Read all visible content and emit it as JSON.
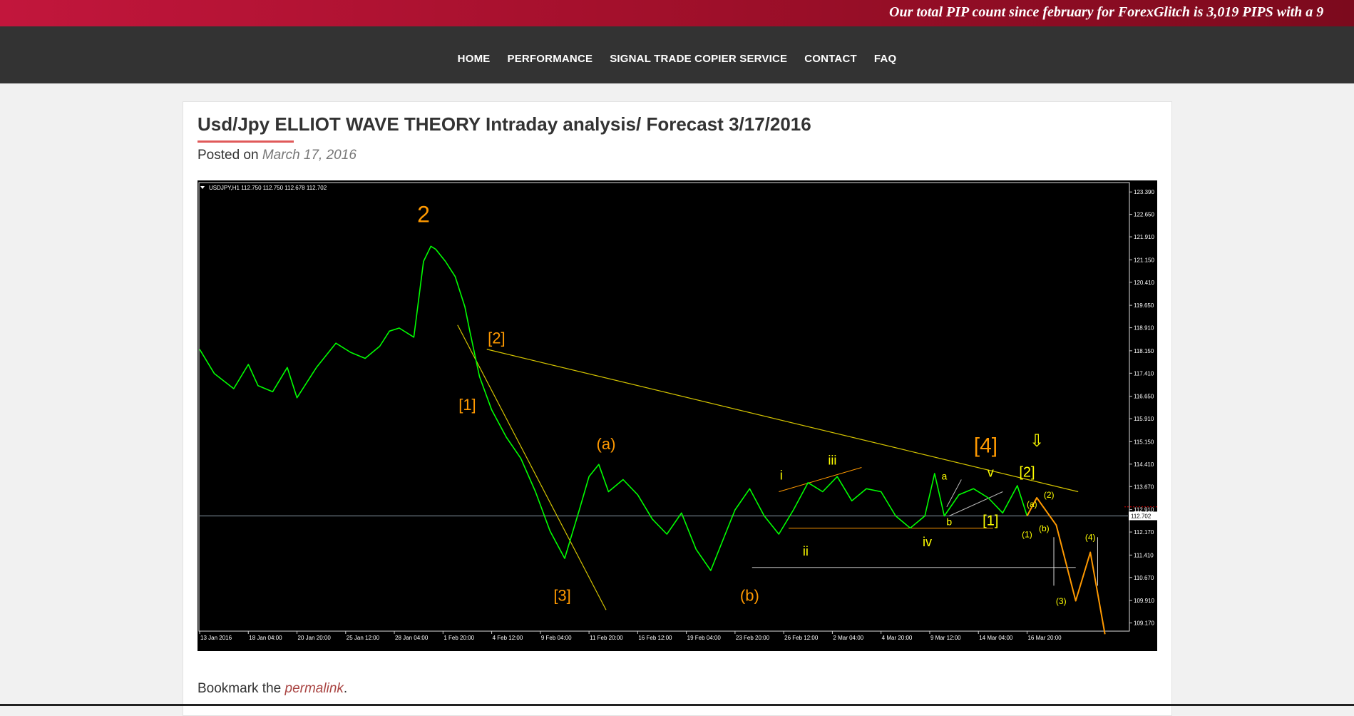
{
  "ticker": {
    "text": "Our total PIP count since february for ForexGlitch is 3,019 PIPS with a 9"
  },
  "nav": {
    "items": [
      "HOME",
      "PERFORMANCE",
      "SIGNAL TRADE COPIER SERVICE",
      "CONTACT",
      "FAQ"
    ]
  },
  "post": {
    "title": "Usd/Jpy ELLIOT WAVE THEORY Intraday analysis/ Forecast 3/17/2016",
    "posted_on": "Posted on",
    "date": "March 17, 2016",
    "bookmark_prefix": "Bookmark the",
    "bookmark_link": "permalink",
    "bookmark_suffix": "."
  },
  "colors": {
    "accent": "#c2163c",
    "nav_bg": "#333333",
    "link": "#a94442",
    "price": "#00ff00",
    "trendline": "#d4c400",
    "projection": "#ff9900",
    "wave_label": "#ff9900",
    "wave_label_minor": "#ffff00"
  },
  "chart_data": {
    "type": "line",
    "header": "USDJPY,H1  112.750 112.750 112.678 112.702",
    "last_price": "112.702",
    "ylim": [
      108.9,
      123.7
    ],
    "yticks": [
      "123.390",
      "122.650",
      "121.910",
      "121.150",
      "120.410",
      "119.650",
      "118.910",
      "118.150",
      "117.410",
      "116.650",
      "115.910",
      "115.150",
      "114.410",
      "113.670",
      "112.910",
      "112.170",
      "111.410",
      "110.670",
      "109.910",
      "109.170"
    ],
    "xticks": [
      "13 Jan 2016",
      "18 Jan 04:00",
      "20 Jan 20:00",
      "25 Jan 12:00",
      "28 Jan 04:00",
      "1 Feb 20:00",
      "4 Feb 12:00",
      "9 Feb 04:00",
      "11 Feb 20:00",
      "16 Feb 12:00",
      "19 Feb 04:00",
      "23 Feb 20:00",
      "26 Feb 12:00",
      "2 Mar 04:00",
      "4 Mar 20:00",
      "9 Mar 12:00",
      "14 Mar 04:00",
      "16 Mar 20:00"
    ],
    "series": [
      {
        "x": [
          0,
          0.3,
          0.7,
          1.0,
          1.2,
          1.5,
          1.8,
          2.0,
          2.4,
          2.8,
          3.1,
          3.4,
          3.7,
          3.9,
          4.1,
          4.4,
          4.6,
          4.75,
          4.85,
          5.05,
          5.25,
          5.45,
          5.55,
          5.75,
          6.0,
          6.3,
          6.6,
          6.9,
          7.2,
          7.5,
          7.8,
          8.0,
          8.2,
          8.4,
          8.7,
          9.0,
          9.3,
          9.6,
          9.9,
          10.2,
          10.5,
          10.8,
          11.0,
          11.3,
          11.6,
          11.9,
          12.2,
          12.5,
          12.8,
          13.1,
          13.4,
          13.7,
          14.0,
          14.3,
          14.6,
          14.9,
          15.1,
          15.3,
          15.6,
          15.9,
          16.2,
          16.5,
          16.8,
          17.0
        ],
        "values": [
          118.2,
          117.4,
          116.9,
          117.7,
          117.0,
          116.8,
          117.6,
          116.6,
          117.6,
          118.4,
          118.1,
          117.9,
          118.3,
          118.8,
          118.9,
          118.6,
          121.1,
          121.6,
          121.5,
          121.1,
          120.6,
          119.6,
          118.8,
          117.3,
          116.2,
          115.3,
          114.6,
          113.5,
          112.2,
          111.3,
          112.9,
          114.0,
          114.4,
          113.5,
          113.9,
          113.4,
          112.6,
          112.1,
          112.8,
          111.6,
          110.9,
          112.1,
          112.9,
          113.6,
          112.7,
          112.1,
          112.9,
          113.8,
          113.5,
          114.0,
          113.2,
          113.6,
          113.5,
          112.7,
          112.3,
          112.7,
          114.1,
          112.7,
          113.4,
          113.6,
          113.3,
          112.8,
          113.7,
          112.7
        ]
      },
      {
        "name": "projection",
        "x": [
          17.0,
          17.2,
          17.6,
          18.0,
          18.3,
          18.6
        ],
        "values": [
          112.7,
          113.3,
          112.4,
          109.9,
          111.5,
          108.8
        ]
      }
    ],
    "annotations": [
      "2",
      "[2]",
      "[1]",
      "[3]",
      "(a)",
      "(b)",
      "i",
      "ii",
      "iii",
      "iv",
      "v",
      "a",
      "b",
      "[4]",
      "[2]",
      "[1]",
      "(a)",
      "(b)",
      "(1)",
      "(2)",
      "(3)",
      "(4)",
      "⇩"
    ],
    "grid": false
  }
}
